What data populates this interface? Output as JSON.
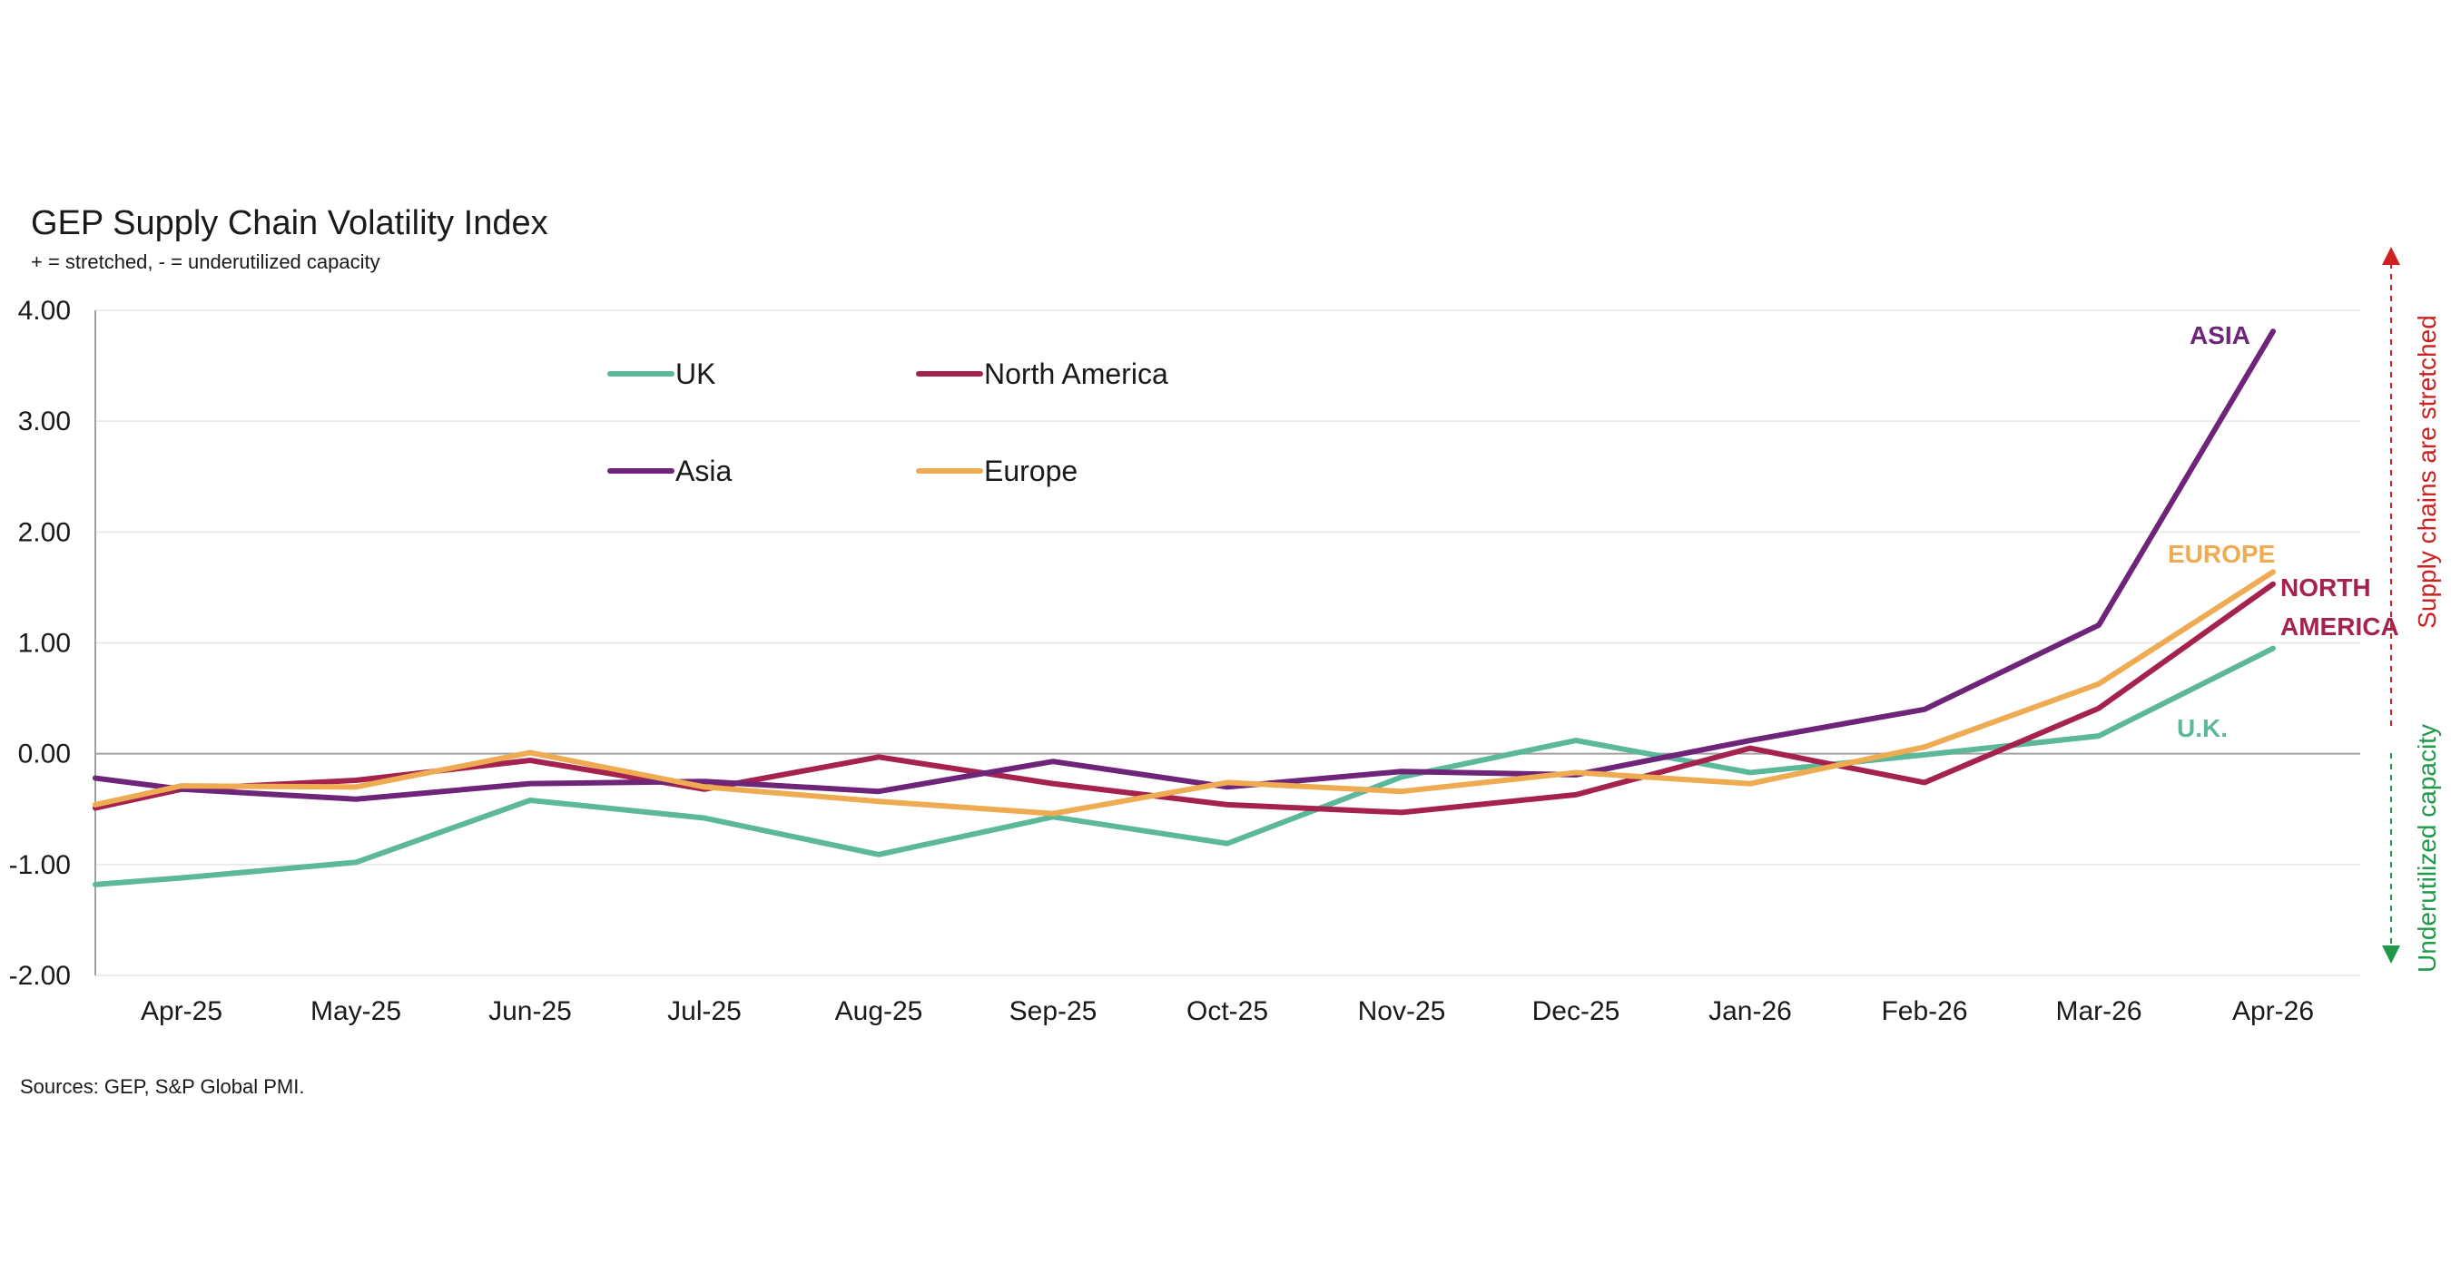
{
  "chart_data": {
    "type": "line",
    "title": "GEP Supply Chain Volatility Index",
    "subtitle": "+ = stretched, - = underutilized capacity",
    "source": "Sources: GEP, S&P Global PMI.",
    "categories": [
      "Apr-25",
      "May-25",
      "Jun-25",
      "Jul-25",
      "Aug-25",
      "Sep-25",
      "Oct-25",
      "Nov-25",
      "Dec-25",
      "Jan-26",
      "Feb-26",
      "Mar-26",
      "Apr-26"
    ],
    "x_start_value": -1.18,
    "ylim": [
      -2,
      4
    ],
    "yticks": [
      "4.00",
      "3.00",
      "2.00",
      "1.00",
      "0.00",
      "-1.00",
      "-2.00"
    ],
    "grid": true,
    "series": [
      {
        "name": "UK",
        "color": "#5bb89a",
        "label": "U.K.",
        "start": -1.18,
        "values": [
          -1.12,
          -0.98,
          -0.42,
          -0.58,
          -0.91,
          -0.57,
          -0.81,
          -0.21,
          0.12,
          -0.17,
          -0.01,
          0.16,
          0.95
        ]
      },
      {
        "name": "North America",
        "color": "#a6224e",
        "label": "NORTH AMERICA",
        "label_lines": [
          "NORTH",
          "AMERICA"
        ],
        "start": -0.49,
        "values": [
          -0.32,
          -0.24,
          -0.06,
          -0.32,
          -0.03,
          -0.27,
          -0.46,
          -0.53,
          -0.37,
          0.05,
          -0.26,
          0.41,
          1.53
        ]
      },
      {
        "name": "Asia",
        "color": "#6e2478",
        "label": "ASIA",
        "start": -0.22,
        "values": [
          -0.32,
          -0.41,
          -0.27,
          -0.25,
          -0.34,
          -0.07,
          -0.3,
          -0.16,
          -0.19,
          0.12,
          0.4,
          1.16,
          3.81
        ]
      },
      {
        "name": "Europe",
        "color": "#eeab52",
        "label": "EUROPE",
        "start": -0.46,
        "values": [
          -0.29,
          -0.3,
          0.01,
          -0.3,
          -0.43,
          -0.54,
          -0.26,
          -0.34,
          -0.17,
          -0.27,
          0.06,
          0.63,
          1.64
        ]
      }
    ],
    "legend": [
      {
        "name": "UK",
        "color": "#5bb89a"
      },
      {
        "name": "North America",
        "color": "#a6224e"
      },
      {
        "name": "Asia",
        "color": "#6e2478"
      },
      {
        "name": "Europe",
        "color": "#eeab52"
      }
    ],
    "side_annotations": {
      "up": {
        "text": "Supply chains are stretched",
        "color": "#cc2222"
      },
      "down": {
        "text": "Underutilized capacity",
        "color": "#1f9a4a"
      }
    }
  }
}
